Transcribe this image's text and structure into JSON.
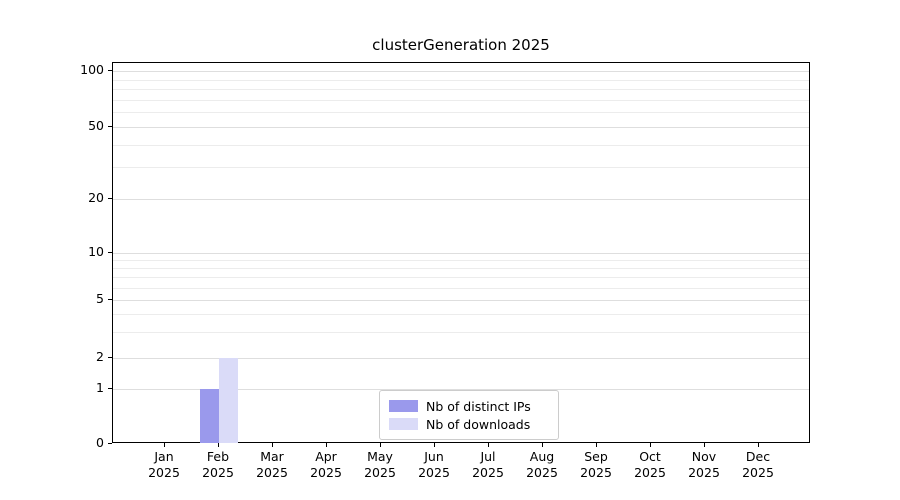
{
  "chart_data": {
    "type": "bar",
    "title": "clusterGeneration 2025",
    "categories": [
      "Jan 2025",
      "Feb 2025",
      "Mar 2025",
      "Apr 2025",
      "May 2025",
      "Jun 2025",
      "Jul 2025",
      "Aug 2025",
      "Sep 2025",
      "Oct 2025",
      "Nov 2025",
      "Dec 2025"
    ],
    "series": [
      {
        "name": "Nb of distinct IPs",
        "color": "#9a99ec",
        "values": [
          0,
          1,
          0,
          0,
          0,
          0,
          0,
          0,
          0,
          0,
          0,
          0
        ]
      },
      {
        "name": "Nb of downloads",
        "color": "#dadbf8",
        "values": [
          0,
          2,
          0,
          0,
          0,
          0,
          0,
          0,
          0,
          0,
          0,
          0
        ]
      }
    ],
    "yscale": "symlog",
    "ylim": [
      0,
      100
    ],
    "yticks": [
      0,
      1,
      2,
      5,
      10,
      20,
      50,
      100
    ],
    "yticks_minor": [
      3,
      4,
      6,
      7,
      8,
      9,
      30,
      40,
      60,
      70,
      80,
      90
    ],
    "grid": true,
    "legend_position": "lower center"
  }
}
